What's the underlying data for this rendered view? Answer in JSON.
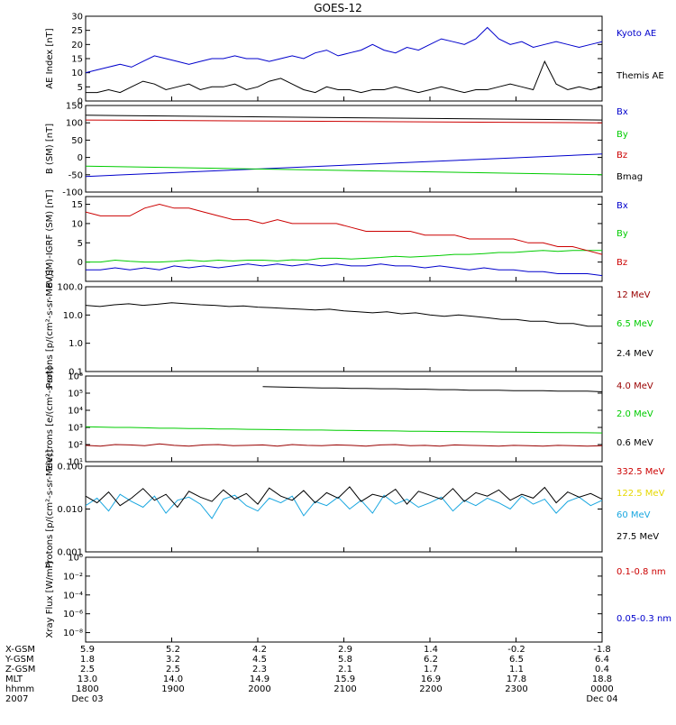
{
  "title": "GOES-12",
  "chart_data": [
    {
      "type": "line",
      "panel": "ae",
      "ylabel": "AE Index [nT]",
      "ylim": [
        0,
        30
      ],
      "yticks": [
        "0",
        "5",
        "10",
        "15",
        "20",
        "25",
        "30"
      ],
      "scale": "linear",
      "legend_position": "right",
      "series": [
        {
          "name": "Kyoto AE",
          "color": "#0000cc",
          "values": [
            10,
            11,
            12,
            13,
            12,
            14,
            16,
            15,
            14,
            13,
            14,
            15,
            15,
            16,
            15,
            15,
            14,
            15,
            16,
            15,
            17,
            18,
            16,
            17,
            18,
            20,
            18,
            17,
            19,
            18,
            20,
            22,
            21,
            20,
            22,
            26,
            22,
            20,
            21,
            19,
            20,
            21,
            20,
            19,
            20,
            21
          ]
        },
        {
          "name": "Themis AE",
          "color": "#000000",
          "values": [
            3,
            3,
            4,
            3,
            5,
            7,
            6,
            4,
            5,
            6,
            4,
            5,
            5,
            6,
            4,
            5,
            7,
            8,
            6,
            4,
            3,
            5,
            4,
            4,
            3,
            4,
            4,
            5,
            4,
            3,
            4,
            5,
            4,
            3,
            4,
            4,
            5,
            6,
            5,
            4,
            14,
            6,
            4,
            5,
            4,
            5
          ]
        }
      ]
    },
    {
      "type": "line",
      "panel": "bsm",
      "ylabel": "B (SM) [nT]",
      "ylim": [
        -100,
        150
      ],
      "yticks": [
        "-100",
        "-50",
        "0",
        "50",
        "100",
        "150"
      ],
      "scale": "linear",
      "legend_position": "right",
      "series": [
        {
          "name": "Bx",
          "color": "#0000cc",
          "x": [
            0,
            1
          ],
          "values": [
            -55,
            10
          ]
        },
        {
          "name": "By",
          "color": "#00cc00",
          "x": [
            0,
            1
          ],
          "values": [
            -25,
            -50
          ]
        },
        {
          "name": "Bz",
          "color": "#cc0000",
          "x": [
            0,
            1
          ],
          "values": [
            108,
            100
          ]
        },
        {
          "name": "Bmag",
          "color": "#000000",
          "x": [
            0,
            1
          ],
          "values": [
            122,
            108
          ]
        }
      ]
    },
    {
      "type": "line",
      "panel": "bigrf",
      "ylabel": "B (SM)-IGRF (SM) [nT]",
      "ylim": [
        -5,
        17
      ],
      "yticks": [
        "0",
        "5",
        "10",
        "15"
      ],
      "scale": "linear",
      "legend_position": "right",
      "series": [
        {
          "name": "Bx",
          "color": "#0000cc",
          "values": [
            -2,
            -2,
            -1.5,
            -2,
            -1.5,
            -2,
            -1,
            -1.5,
            -1,
            -1.5,
            -1,
            -0.5,
            -1,
            -0.5,
            -1,
            -0.5,
            -1,
            -0.5,
            -1,
            -1,
            -0.5,
            -1,
            -1,
            -1.5,
            -1,
            -1.5,
            -2,
            -1.5,
            -2,
            -2,
            -2.5,
            -2.5,
            -3,
            -3,
            -3,
            -3.5
          ]
        },
        {
          "name": "By",
          "color": "#00cc00",
          "values": [
            0,
            0,
            0.5,
            0.2,
            0,
            0,
            0.2,
            0.5,
            0.2,
            0.5,
            0.3,
            0.5,
            0.5,
            0.3,
            0.6,
            0.5,
            1,
            1,
            0.8,
            1,
            1.2,
            1.5,
            1.3,
            1.5,
            1.7,
            2,
            2,
            2.2,
            2.5,
            2.5,
            2.8,
            3,
            2.8,
            3,
            3,
            3
          ]
        },
        {
          "name": "Bz",
          "color": "#cc0000",
          "values": [
            13,
            12,
            12,
            12,
            14,
            15,
            14,
            14,
            13,
            12,
            11,
            11,
            10,
            11,
            10,
            10,
            10,
            10,
            9,
            8,
            8,
            8,
            8,
            7,
            7,
            7,
            6,
            6,
            6,
            6,
            5,
            5,
            4,
            4,
            3,
            2
          ]
        }
      ]
    },
    {
      "type": "line",
      "panel": "protons",
      "ylabel": "Protons [p/(cm²-s-sr-MeV)]",
      "ylim": [
        0.1,
        100
      ],
      "yticks": [
        "0.1",
        "1.0",
        "10.0",
        "100.0"
      ],
      "scale": "log",
      "legend_position": "right",
      "series": [
        {
          "name": "12 MeV",
          "color": "#990000",
          "values": []
        },
        {
          "name": "6.5 MeV",
          "color": "#00cc00",
          "values": []
        },
        {
          "name": "2.4 MeV",
          "color": "#000000",
          "values": [
            22,
            20,
            23,
            25,
            22,
            24,
            27,
            25,
            23,
            22,
            20,
            21,
            19,
            18,
            17,
            16,
            15,
            16,
            14,
            13,
            12,
            13,
            11,
            12,
            10,
            9,
            10,
            9,
            8,
            7,
            7,
            6,
            6,
            5,
            5,
            4,
            4
          ]
        }
      ]
    },
    {
      "type": "line",
      "panel": "electrons",
      "ylabel": "Electrons [e/(cm²-s-sr)]",
      "ylim": [
        10,
        1000000
      ],
      "yticks": [
        "10¹",
        "10²",
        "10³",
        "10⁴",
        "10⁵",
        "10⁶"
      ],
      "scale": "log",
      "legend_position": "right",
      "series": [
        {
          "name": "4.0 MeV",
          "color": "#990000",
          "values": [
            90,
            80,
            100,
            95,
            85,
            110,
            90,
            80,
            95,
            100,
            85,
            90,
            95,
            80,
            100,
            90,
            85,
            95,
            90,
            80,
            95,
            100,
            85,
            90,
            80,
            95,
            90,
            85,
            80,
            90,
            85,
            80,
            90,
            85,
            80,
            85
          ]
        },
        {
          "name": "2.0 MeV",
          "color": "#00cc00",
          "values": [
            1100,
            1050,
            1000,
            1000,
            950,
            900,
            900,
            850,
            850,
            800,
            800,
            780,
            760,
            740,
            720,
            700,
            700,
            680,
            660,
            650,
            640,
            620,
            600,
            600,
            580,
            570,
            560,
            550,
            540,
            530,
            520,
            510,
            500,
            500,
            490,
            480
          ]
        },
        {
          "name": "0.6 MeV",
          "color": "#000000",
          "values": [
            null,
            null,
            null,
            null,
            null,
            null,
            null,
            null,
            null,
            null,
            null,
            null,
            240000,
            230000,
            220000,
            210000,
            200000,
            200000,
            190000,
            190000,
            180000,
            180000,
            170000,
            170000,
            160000,
            160000,
            150000,
            150000,
            150000,
            140000,
            140000,
            140000,
            130000,
            130000,
            130000,
            120000
          ]
        }
      ]
    },
    {
      "type": "line",
      "panel": "hiprotons",
      "ylabel": "Protons [p/(cm²-s-sr-MeV)]",
      "ylim": [
        0.001,
        0.1
      ],
      "yticks": [
        "0.001",
        "0.010",
        "0.100"
      ],
      "scale": "log",
      "legend_position": "right",
      "series": [
        {
          "name": "332.5 MeV",
          "color": "#cc0000",
          "values": []
        },
        {
          "name": "122.5 MeV",
          "color": "#e6d800",
          "values": []
        },
        {
          "name": "60 MeV",
          "color": "#1aa7e0",
          "values": [
            0.012,
            0.018,
            0.009,
            0.022,
            0.015,
            0.011,
            0.02,
            0.008,
            0.016,
            0.019,
            0.013,
            0.006,
            0.017,
            0.021,
            0.012,
            0.009,
            0.018,
            0.014,
            0.02,
            0.007,
            0.015,
            0.012,
            0.019,
            0.01,
            0.016,
            0.008,
            0.021,
            0.013,
            0.017,
            0.011,
            0.014,
            0.019,
            0.009,
            0.016,
            0.012,
            0.018,
            0.014,
            0.01,
            0.02,
            0.013,
            0.017,
            0.008,
            0.015,
            0.019,
            0.012,
            0.016
          ]
        },
        {
          "name": "27.5 MeV",
          "color": "#000000",
          "values": [
            0.02,
            0.014,
            0.025,
            0.012,
            0.018,
            0.03,
            0.016,
            0.022,
            0.011,
            0.026,
            0.019,
            0.015,
            0.028,
            0.017,
            0.023,
            0.013,
            0.031,
            0.02,
            0.016,
            0.027,
            0.014,
            0.024,
            0.018,
            0.033,
            0.015,
            0.022,
            0.019,
            0.029,
            0.013,
            0.026,
            0.021,
            0.017,
            0.03,
            0.015,
            0.024,
            0.02,
            0.028,
            0.016,
            0.022,
            0.018,
            0.032,
            0.014,
            0.025,
            0.019,
            0.023,
            0.017
          ]
        }
      ]
    },
    {
      "type": "line",
      "panel": "xray",
      "ylabel": "Xray Flux [W/m²]",
      "ylim": [
        1e-09,
        1
      ],
      "yticks": [
        "10⁻⁸",
        "10⁻⁶",
        "10⁻⁴",
        "10⁻²",
        "10⁰"
      ],
      "scale": "log",
      "legend_position": "right",
      "series": [
        {
          "name": "0.1-0.8 nm",
          "color": "#cc0000",
          "values": []
        },
        {
          "name": "0.05-0.3 nm",
          "color": "#0000cc",
          "values": []
        }
      ]
    }
  ],
  "footer": {
    "rows": [
      {
        "label": "X-GSM",
        "values": [
          "5.9",
          "5.2",
          "4.2",
          "2.9",
          "1.4",
          "-0.2",
          "-1.8"
        ]
      },
      {
        "label": "Y-GSM",
        "values": [
          "1.8",
          "3.2",
          "4.5",
          "5.8",
          "6.2",
          "6.5",
          "6.4"
        ]
      },
      {
        "label": "Z-GSM",
        "values": [
          "2.5",
          "2.5",
          "2.3",
          "2.1",
          "1.7",
          "1.1",
          "0.4"
        ]
      },
      {
        "label": "MLT",
        "values": [
          "13.0",
          "14.0",
          "14.9",
          "15.9",
          "16.9",
          "17.8",
          "18.8"
        ]
      },
      {
        "label": "hhmm",
        "values": [
          "1800",
          "1900",
          "2000",
          "2100",
          "2200",
          "2300",
          "0000"
        ]
      },
      {
        "label": "2007",
        "values": [
          "Dec 03",
          "",
          "",
          "",
          "",
          "",
          "Dec 04"
        ]
      }
    ]
  }
}
